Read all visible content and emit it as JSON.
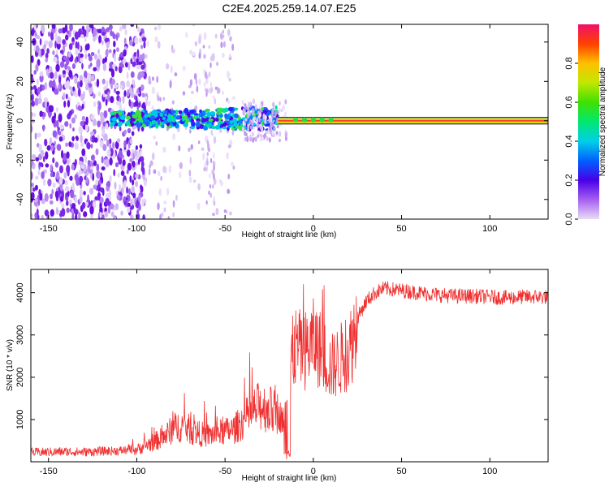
{
  "title": "C2E4.2025.259.14.07.E25",
  "chart_data": [
    {
      "type": "heatmap",
      "title": "C2E4.2025.259.14.07.E25",
      "xlabel": "Height of straight line (km)",
      "ylabel": "Frequency (Hz)",
      "xlim": [
        -160,
        133
      ],
      "ylim": [
        -50,
        49
      ],
      "xticks": [
        -150,
        -100,
        -50,
        0,
        50,
        100
      ],
      "yticks": [
        -40,
        -20,
        0,
        20,
        40
      ],
      "colorbar": {
        "label": "Normalized spectral amplitude",
        "range": [
          0,
          1
        ],
        "ticks": [
          0.0,
          0.2,
          0.4,
          0.6,
          0.8
        ],
        "colors": [
          "#e6d4f5",
          "#a65ff0",
          "#6a00e8",
          "#2036ff",
          "#00b8ff",
          "#00e8c0",
          "#22e040",
          "#9ae000",
          "#f0e000",
          "#ff9000",
          "#ff3c00",
          "#e8006a"
        ]
      },
      "features": [
        {
          "name": "noisy-scatter",
          "x_range": [
            -160,
            -95
          ],
          "y_range": [
            -50,
            49
          ]
        },
        {
          "name": "sparse-scatter",
          "x_range": [
            -95,
            -45
          ],
          "y_range": [
            -50,
            49
          ]
        },
        {
          "name": "central-band",
          "x_range": [
            -115,
            -20
          ],
          "center_hz": 2,
          "halfwidth_hz": 6
        },
        {
          "name": "narrow-line",
          "x_range": [
            -20,
            133
          ],
          "center_hz": 0
        }
      ]
    },
    {
      "type": "line",
      "xlabel": "Height of straight line (km)",
      "ylabel": "SNR (10 * v/v)",
      "xlim": [
        -160,
        133
      ],
      "ylim": [
        0,
        4550
      ],
      "xticks": [
        -150,
        -100,
        -50,
        0,
        50,
        100
      ],
      "yticks": [
        1000,
        2000,
        3000,
        4000
      ],
      "series": [
        {
          "name": "SNR",
          "color": "#f03030",
          "x": [
            -160,
            -150,
            -140,
            -130,
            -120,
            -110,
            -100,
            -95,
            -90,
            -85,
            -80,
            -75,
            -70,
            -65,
            -60,
            -55,
            -50,
            -45,
            -40,
            -35,
            -30,
            -25,
            -20,
            -17,
            -15,
            -12,
            -10,
            -5,
            0,
            5,
            10,
            15,
            20,
            25,
            30,
            35,
            40,
            50,
            60,
            70,
            80,
            90,
            100,
            110,
            120,
            133
          ],
          "values": [
            220,
            230,
            240,
            230,
            250,
            260,
            300,
            400,
            500,
            600,
            800,
            900,
            800,
            700,
            650,
            700,
            750,
            800,
            1000,
            1200,
            1400,
            1300,
            1200,
            1000,
            1300,
            2600,
            2800,
            2700,
            2950,
            2700,
            2300,
            2500,
            2700,
            3400,
            3800,
            4000,
            4100,
            4050,
            4000,
            3950,
            3920,
            3920,
            3900,
            3880,
            3900,
            3900
          ]
        }
      ]
    }
  ]
}
